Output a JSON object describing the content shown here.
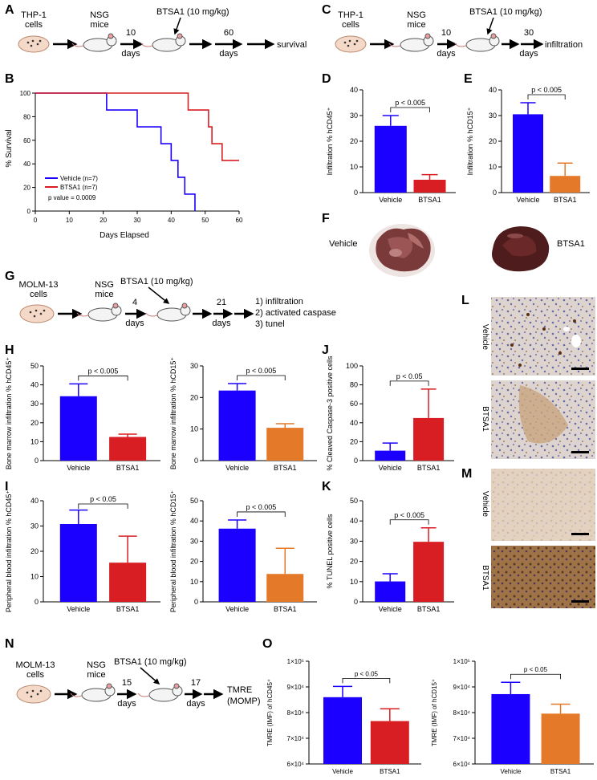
{
  "panel_labels": {
    "A": "A",
    "B": "B",
    "C": "C",
    "D": "D",
    "E": "E",
    "F": "F",
    "G": "G",
    "H": "H",
    "I": "I",
    "J": "J",
    "K": "K",
    "L": "L",
    "M": "M",
    "N": "N",
    "O": "O"
  },
  "schematics": {
    "A": {
      "cells": [
        "THP-1",
        "cells"
      ],
      "mice": [
        "NSG",
        "mice"
      ],
      "drug": "BTSA1 (10 mg/kg)",
      "t1": [
        "10",
        "days"
      ],
      "t2": [
        "60",
        "days"
      ],
      "endpoint": [
        "survival"
      ]
    },
    "C": {
      "cells": [
        "THP-1",
        "cells"
      ],
      "mice": [
        "NSG",
        "mice"
      ],
      "drug": "BTSA1 (10 mg/kg)",
      "t1": [
        "10",
        "days"
      ],
      "t2": [
        "30",
        "days"
      ],
      "endpoint": [
        "infiltration"
      ]
    },
    "G": {
      "cells": [
        "MOLM-13",
        "cells"
      ],
      "mice": [
        "NSG",
        "mice"
      ],
      "drug": "BTSA1 (10 mg/kg)",
      "t1": [
        "4",
        "days"
      ],
      "t2": [
        "21",
        "days"
      ],
      "endpoint": [
        "1) infiltration",
        "2) activated caspase",
        "3) tunel"
      ]
    },
    "N": {
      "cells": [
        "MOLM-13",
        "cells"
      ],
      "mice": [
        "NSG",
        "mice"
      ],
      "drug": "BTSA1 (10 mg/kg)",
      "t1": [
        "15",
        "days"
      ],
      "t2": [
        "17",
        "days"
      ],
      "endpoint": [
        "TMRE",
        "(MOMP)"
      ]
    }
  },
  "survival": {
    "ylabel": "% Survival",
    "xlabel": "Days Elapsed",
    "xticks": [
      "0",
      "10",
      "20",
      "30",
      "40",
      "50",
      "60"
    ],
    "yticks": [
      "0",
      "20",
      "40",
      "60",
      "80",
      "100"
    ],
    "legend": [
      "Vehicle (n=7)",
      "BTSA1 (n=7)"
    ],
    "pvalue": "p value = 0.0009"
  },
  "liver": {
    "left": "Vehicle",
    "right": "BTSA1"
  },
  "ihc": {
    "L": [
      "Vehicle",
      "BTSA1"
    ],
    "M": [
      "Vehicle",
      "BTSA1"
    ]
  },
  "colors": {
    "vehicle": "#1c00ff",
    "btsa1_red": "#d81e23",
    "btsa1_orange": "#e4792a"
  },
  "chart_data": [
    {
      "id": "B",
      "type": "line",
      "title": "",
      "xlabel": "Days Elapsed",
      "ylabel": "% Survival",
      "xlim": [
        0,
        60
      ],
      "ylim": [
        0,
        100
      ],
      "series": [
        {
          "name": "Vehicle (n=7)",
          "x": [
            0,
            21,
            21,
            30,
            30,
            37,
            37,
            40,
            40,
            42,
            42,
            44,
            44,
            47,
            47
          ],
          "y": [
            100,
            100,
            85.7,
            85.7,
            71.4,
            71.4,
            57.1,
            57.1,
            42.9,
            42.9,
            28.6,
            28.6,
            14.3,
            14.3,
            0
          ]
        },
        {
          "name": "BTSA1 (n=7)",
          "x": [
            0,
            45,
            45,
            51,
            51,
            52,
            52,
            55,
            55,
            60
          ],
          "y": [
            100,
            100,
            85.7,
            85.7,
            71.4,
            71.4,
            57.1,
            57.1,
            42.9,
            42.9
          ]
        }
      ]
    },
    {
      "id": "D",
      "type": "bar",
      "categories": [
        "Vehicle",
        "BTSA1"
      ],
      "values": [
        26,
        5
      ],
      "errors": [
        4,
        2
      ],
      "ylabel": "Infiltration % hCD45⁺",
      "ylim": [
        0,
        40
      ],
      "yticks": [
        "0",
        "10",
        "20",
        "30",
        "40"
      ],
      "pvalue": "p < 0.005"
    },
    {
      "id": "E",
      "type": "bar",
      "categories": [
        "Vehicle",
        "BTSA1"
      ],
      "values": [
        30.5,
        6.5
      ],
      "errors": [
        4.5,
        5
      ],
      "ylabel": "Infiltration % hCD15⁺",
      "ylim": [
        0,
        40
      ],
      "yticks": [
        "0",
        "10",
        "20",
        "30",
        "40"
      ],
      "pvalue": "p < 0.005"
    },
    {
      "id": "H1",
      "type": "bar",
      "categories": [
        "Vehicle",
        "BTSA1"
      ],
      "values": [
        34,
        12.5
      ],
      "errors": [
        6.5,
        1.5
      ],
      "ylabel": "Bone marrow infiltration % hCD45⁺",
      "ylim": [
        0,
        50
      ],
      "yticks": [
        "0",
        "10",
        "20",
        "30",
        "40",
        "50"
      ],
      "pvalue": "p < 0.005"
    },
    {
      "id": "H2",
      "type": "bar",
      "categories": [
        "Vehicle",
        "BTSA1"
      ],
      "values": [
        22.2,
        10.4
      ],
      "errors": [
        2.2,
        1.3
      ],
      "ylabel": "Bone marrow infiltration % hCD15⁺",
      "ylim": [
        0,
        30
      ],
      "yticks": [
        "0",
        "10",
        "20",
        "30"
      ],
      "pvalue": "p < 0.005"
    },
    {
      "id": "J",
      "type": "bar",
      "categories": [
        "Vehicle",
        "BTSA1"
      ],
      "values": [
        10.5,
        45
      ],
      "errors": [
        8,
        30.5
      ],
      "ylabel": "% Cleaved Caspase-3 positive cells",
      "ylim": [
        0,
        100
      ],
      "yticks": [
        "0",
        "20",
        "40",
        "60",
        "80",
        "100"
      ],
      "pvalue": "p < 0.05"
    },
    {
      "id": "I1",
      "type": "bar",
      "categories": [
        "Vehicle",
        "BTSA1"
      ],
      "values": [
        30.8,
        15.5
      ],
      "errors": [
        5.5,
        10.5
      ],
      "ylabel": "Peripheral blood infiltration % hCD45⁺",
      "ylim": [
        0,
        40
      ],
      "yticks": [
        "0",
        "10",
        "20",
        "30",
        "40"
      ],
      "pvalue": "p < 0.05"
    },
    {
      "id": "I2",
      "type": "bar",
      "categories": [
        "Vehicle",
        "BTSA1"
      ],
      "values": [
        36.2,
        13.8
      ],
      "errors": [
        4.3,
        12.7
      ],
      "ylabel": "Peripheral blood infiltration % hCD15⁺",
      "ylim": [
        0,
        50
      ],
      "yticks": [
        "0",
        "10",
        "20",
        "30",
        "40",
        "50"
      ],
      "pvalue": "p < 0.005"
    },
    {
      "id": "K",
      "type": "bar",
      "categories": [
        "Vehicle",
        "BTSA1"
      ],
      "values": [
        10.1,
        29.7
      ],
      "errors": [
        3.8,
        6.9
      ],
      "ylabel": "% TUNEL positive cells",
      "ylim": [
        0,
        50
      ],
      "yticks": [
        "0",
        "10",
        "20",
        "30",
        "40",
        "50"
      ],
      "pvalue": "p < 0.005"
    },
    {
      "id": "O1",
      "type": "bar",
      "categories": [
        "Vehicle",
        "BTSA1"
      ],
      "values": [
        86000,
        76700
      ],
      "errors": [
        4200,
        4800
      ],
      "ylabel": "TMRE (IMF) of hCD45⁺",
      "ylim": [
        60000,
        100000
      ],
      "yticks": [
        "6×10⁴",
        "7×10⁴",
        "8×10⁴",
        "9×10⁴",
        "1×10⁵"
      ],
      "pvalue": "p < 0.05"
    },
    {
      "id": "O2",
      "type": "bar",
      "categories": [
        "Vehicle",
        "BTSA1"
      ],
      "values": [
        87200,
        79600
      ],
      "errors": [
        4600,
        3700
      ],
      "ylabel": "TMRE (IMF) of hCD15⁺",
      "ylim": [
        60000,
        100000
      ],
      "yticks": [
        "6×10⁴",
        "7×10⁴",
        "8×10⁴",
        "9×10⁴",
        "1×10⁵"
      ],
      "pvalue": "p < 0.05"
    }
  ]
}
